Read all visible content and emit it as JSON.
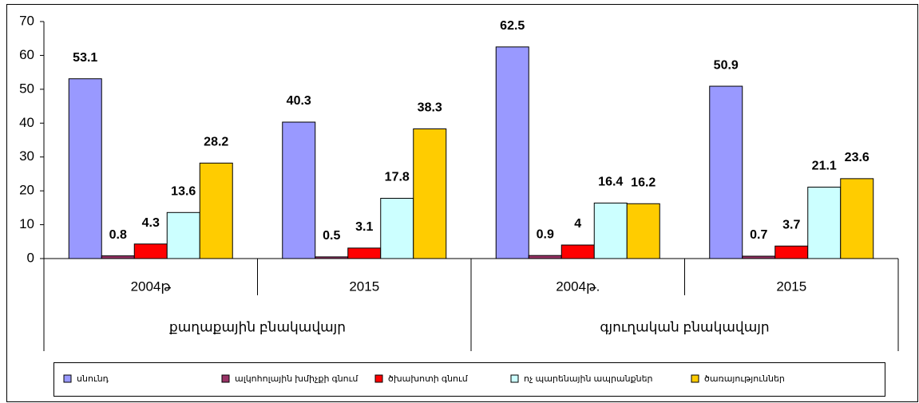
{
  "chart_data": {
    "type": "bar",
    "categories": [
      "2004թ",
      "2015",
      "2004թ.",
      "2015"
    ],
    "groups": [
      "քաղաքային բնակավայր",
      "գյուղական բնակավայր"
    ],
    "series": [
      {
        "name": "սնունդ",
        "color": "#9999ff",
        "values": [
          53.1,
          40.3,
          62.5,
          50.9
        ]
      },
      {
        "name": "ալկոհոլային խմիչքի գնում",
        "color": "#993366",
        "values": [
          0.8,
          0.5,
          0.9,
          0.7
        ]
      },
      {
        "name": "ծխախոտի գնում",
        "color": "#ff0000",
        "values": [
          4.3,
          3.1,
          4,
          3.7
        ]
      },
      {
        "name": "ոչ պարենային ապրանքներ",
        "color": "#ccffff",
        "values": [
          13.6,
          17.8,
          16.4,
          21.1
        ]
      },
      {
        "name": "ծառայություններ",
        "color": "#ffcc00",
        "values": [
          28.2,
          38.3,
          16.2,
          23.6
        ]
      }
    ],
    "ylim": [
      0,
      70
    ],
    "yticks": [
      0,
      10,
      20,
      30,
      40,
      50,
      60,
      70
    ],
    "legend": "bottom"
  }
}
